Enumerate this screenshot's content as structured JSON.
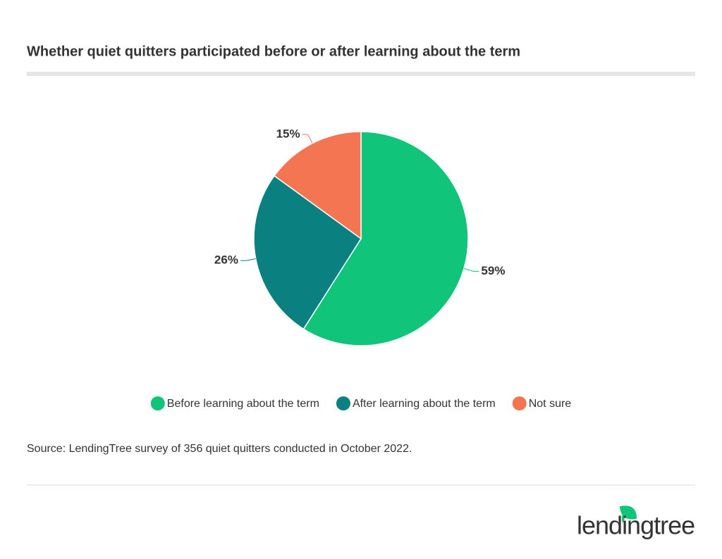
{
  "chart_data": {
    "type": "pie",
    "title": "Whether quiet quitters participated before or after learning about the term",
    "categories": [
      "Before learning about the term",
      "After learning about the term",
      "Not sure"
    ],
    "values": [
      59,
      26,
      15
    ],
    "value_labels": [
      "59%",
      "26%",
      "15%"
    ],
    "colors": [
      "#10c47a",
      "#0a8080",
      "#f47552"
    ],
    "legend": "bottom"
  },
  "source": "Source: LendingTree survey of 356 quiet quitters conducted in October 2022.",
  "logo": "lendingtree"
}
